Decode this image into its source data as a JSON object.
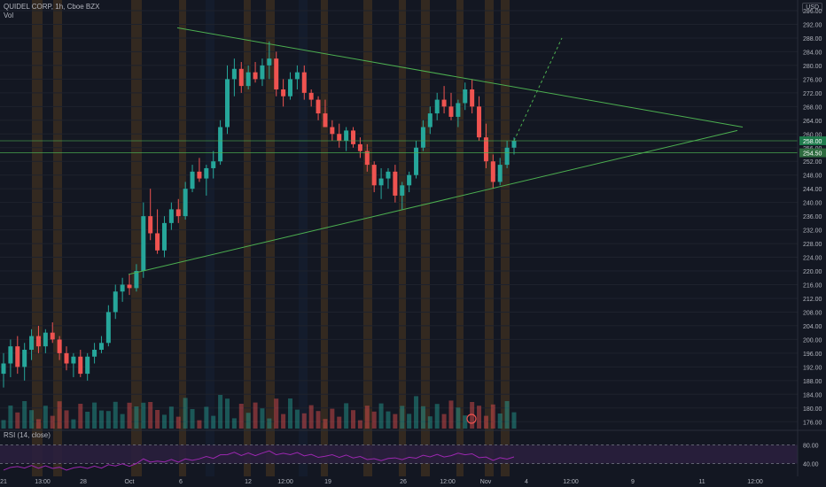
{
  "header": {
    "symbol_line": "QUIDEL CORP, 1h, Cboe BZX",
    "volume_label": "Vol",
    "currency": "USD"
  },
  "rsi": {
    "label": "RSI (14, close)",
    "ticks": [
      "80.00",
      "40.00"
    ]
  },
  "colors": {
    "background": "#131722",
    "up_candle": "#26a69a",
    "down_candle": "#ef5350",
    "trendline": "#4caf50",
    "rsi_line": "#9c27b0",
    "rsi_band": "#2a1f3d",
    "session_orange": "#c77e1a",
    "session_blue": "#1e3a5f"
  },
  "chart_data": {
    "type": "candlestick",
    "symbol": "QUIDEL CORP",
    "interval": "1h",
    "exchange": "Cboe BZX",
    "ylim": [
      174,
      296
    ],
    "y_ticks": [
      "296.00",
      "292.00",
      "288.00",
      "284.00",
      "280.00",
      "276.00",
      "272.00",
      "268.00",
      "264.00",
      "260.00",
      "256.00",
      "252.00",
      "248.00",
      "244.00",
      "240.00",
      "236.00",
      "232.00",
      "228.00",
      "224.00",
      "220.00",
      "216.00",
      "212.00",
      "208.00",
      "204.00",
      "200.00",
      "196.00",
      "192.00",
      "188.00",
      "184.00",
      "180.00",
      "176.00"
    ],
    "x_ticks": [
      "21",
      "13:00",
      "28",
      "Oct",
      "6",
      "12",
      "12:00",
      "19",
      "26",
      "12:00",
      "Nov",
      "4",
      "12:00",
      "9",
      "11",
      "12:00"
    ],
    "price_labels": [
      "258.00",
      "254.50"
    ],
    "candles": [
      {
        "o": 190,
        "h": 196,
        "l": 186,
        "c": 193
      },
      {
        "o": 193,
        "h": 200,
        "l": 189,
        "c": 198
      },
      {
        "o": 198,
        "h": 201,
        "l": 190,
        "c": 192
      },
      {
        "o": 192,
        "h": 199,
        "l": 188,
        "c": 197
      },
      {
        "o": 197,
        "h": 203,
        "l": 194,
        "c": 201
      },
      {
        "o": 201,
        "h": 204,
        "l": 196,
        "c": 198
      },
      {
        "o": 198,
        "h": 203,
        "l": 196,
        "c": 202
      },
      {
        "o": 202,
        "h": 205,
        "l": 199,
        "c": 200
      },
      {
        "o": 200,
        "h": 201,
        "l": 194,
        "c": 196
      },
      {
        "o": 196,
        "h": 198,
        "l": 191,
        "c": 193
      },
      {
        "o": 193,
        "h": 196,
        "l": 189,
        "c": 195
      },
      {
        "o": 195,
        "h": 197,
        "l": 189,
        "c": 190
      },
      {
        "o": 190,
        "h": 196,
        "l": 188,
        "c": 195
      },
      {
        "o": 195,
        "h": 199,
        "l": 193,
        "c": 197
      },
      {
        "o": 197,
        "h": 201,
        "l": 196,
        "c": 199
      },
      {
        "o": 199,
        "h": 210,
        "l": 198,
        "c": 208
      },
      {
        "o": 208,
        "h": 216,
        "l": 206,
        "c": 214
      },
      {
        "o": 214,
        "h": 218,
        "l": 211,
        "c": 216
      },
      {
        "o": 216,
        "h": 219,
        "l": 213,
        "c": 215
      },
      {
        "o": 215,
        "h": 222,
        "l": 214,
        "c": 220
      },
      {
        "o": 220,
        "h": 240,
        "l": 218,
        "c": 236
      },
      {
        "o": 236,
        "h": 244,
        "l": 229,
        "c": 231
      },
      {
        "o": 231,
        "h": 238,
        "l": 225,
        "c": 226
      },
      {
        "o": 226,
        "h": 236,
        "l": 224,
        "c": 234
      },
      {
        "o": 234,
        "h": 240,
        "l": 232,
        "c": 238
      },
      {
        "o": 238,
        "h": 241,
        "l": 234,
        "c": 236
      },
      {
        "o": 236,
        "h": 246,
        "l": 235,
        "c": 244
      },
      {
        "o": 244,
        "h": 251,
        "l": 243,
        "c": 249
      },
      {
        "o": 249,
        "h": 253,
        "l": 246,
        "c": 247
      },
      {
        "o": 247,
        "h": 251,
        "l": 242,
        "c": 250
      },
      {
        "o": 250,
        "h": 255,
        "l": 247,
        "c": 252
      },
      {
        "o": 252,
        "h": 264,
        "l": 251,
        "c": 262
      },
      {
        "o": 262,
        "h": 280,
        "l": 260,
        "c": 276
      },
      {
        "o": 276,
        "h": 282,
        "l": 271,
        "c": 279
      },
      {
        "o": 279,
        "h": 281,
        "l": 272,
        "c": 274
      },
      {
        "o": 274,
        "h": 280,
        "l": 273,
        "c": 278
      },
      {
        "o": 278,
        "h": 281,
        "l": 275,
        "c": 276
      },
      {
        "o": 276,
        "h": 282,
        "l": 274,
        "c": 280
      },
      {
        "o": 280,
        "h": 287,
        "l": 276,
        "c": 282
      },
      {
        "o": 282,
        "h": 284,
        "l": 271,
        "c": 273
      },
      {
        "o": 273,
        "h": 276,
        "l": 268,
        "c": 271
      },
      {
        "o": 271,
        "h": 278,
        "l": 270,
        "c": 276
      },
      {
        "o": 276,
        "h": 280,
        "l": 273,
        "c": 278
      },
      {
        "o": 278,
        "h": 280,
        "l": 270,
        "c": 272
      },
      {
        "o": 272,
        "h": 273,
        "l": 268,
        "c": 270
      },
      {
        "o": 270,
        "h": 271,
        "l": 264,
        "c": 266
      },
      {
        "o": 266,
        "h": 270,
        "l": 262,
        "c": 262
      },
      {
        "o": 262,
        "h": 264,
        "l": 258,
        "c": 260
      },
      {
        "o": 260,
        "h": 263,
        "l": 256,
        "c": 258
      },
      {
        "o": 258,
        "h": 262,
        "l": 255,
        "c": 261
      },
      {
        "o": 261,
        "h": 262,
        "l": 256,
        "c": 257
      },
      {
        "o": 257,
        "h": 259,
        "l": 253,
        "c": 255
      },
      {
        "o": 255,
        "h": 257,
        "l": 249,
        "c": 251
      },
      {
        "o": 251,
        "h": 252,
        "l": 243,
        "c": 245
      },
      {
        "o": 245,
        "h": 250,
        "l": 241,
        "c": 247
      },
      {
        "o": 247,
        "h": 250,
        "l": 244,
        "c": 249
      },
      {
        "o": 249,
        "h": 251,
        "l": 240,
        "c": 242
      },
      {
        "o": 242,
        "h": 246,
        "l": 238,
        "c": 245
      },
      {
        "o": 245,
        "h": 249,
        "l": 243,
        "c": 248
      },
      {
        "o": 248,
        "h": 258,
        "l": 247,
        "c": 256
      },
      {
        "o": 256,
        "h": 264,
        "l": 255,
        "c": 262
      },
      {
        "o": 262,
        "h": 268,
        "l": 260,
        "c": 266
      },
      {
        "o": 266,
        "h": 272,
        "l": 264,
        "c": 270
      },
      {
        "o": 270,
        "h": 274,
        "l": 266,
        "c": 268
      },
      {
        "o": 268,
        "h": 272,
        "l": 264,
        "c": 265
      },
      {
        "o": 265,
        "h": 270,
        "l": 262,
        "c": 269
      },
      {
        "o": 269,
        "h": 275,
        "l": 267,
        "c": 273
      },
      {
        "o": 273,
        "h": 276,
        "l": 266,
        "c": 268
      },
      {
        "o": 268,
        "h": 271,
        "l": 258,
        "c": 259
      },
      {
        "o": 259,
        "h": 263,
        "l": 250,
        "c": 252
      },
      {
        "o": 252,
        "h": 254,
        "l": 244,
        "c": 246
      },
      {
        "o": 246,
        "h": 253,
        "l": 245,
        "c": 251
      },
      {
        "o": 251,
        "h": 258,
        "l": 250,
        "c": 256
      },
      {
        "o": 256,
        "h": 259,
        "l": 254,
        "c": 258
      }
    ],
    "trendlines": [
      {
        "from": [
          0.215,
          291
        ],
        "to": [
          0.9,
          262
        ]
      },
      {
        "from": [
          0.155,
          219
        ],
        "to": [
          0.9,
          261
        ]
      }
    ],
    "horizontal_lines": [
      258,
      254.5
    ],
    "rsi": {
      "ylim": [
        20,
        100
      ],
      "upper": 80,
      "lower": 40
    }
  }
}
